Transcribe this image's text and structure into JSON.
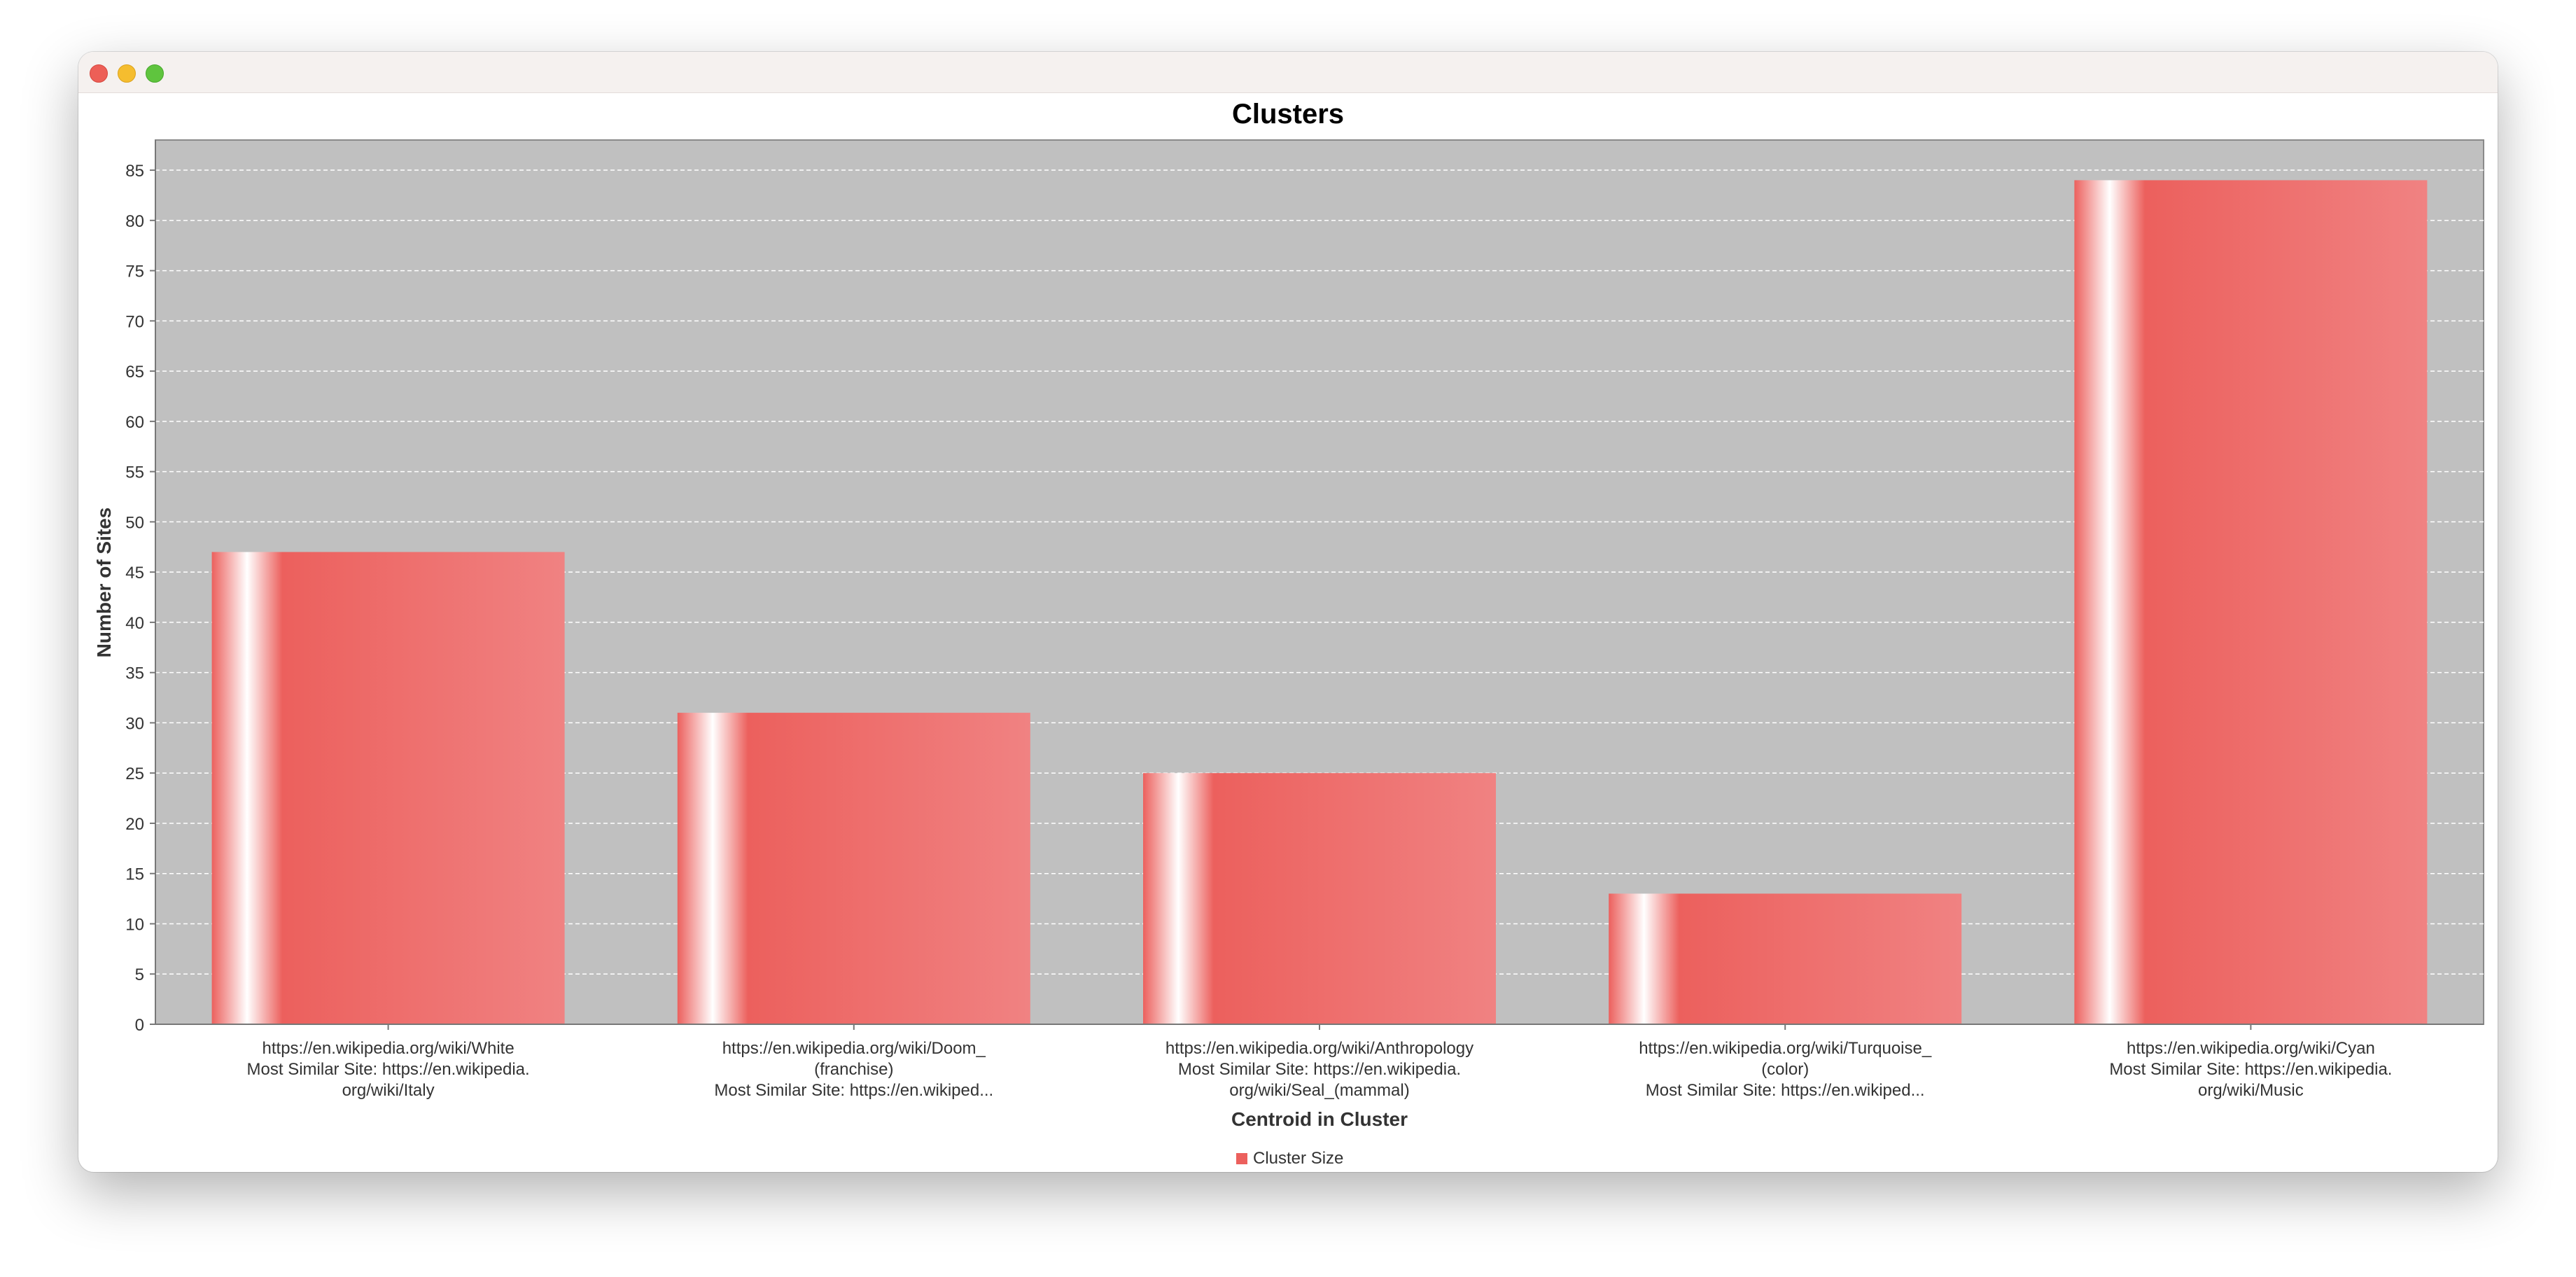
{
  "window": {
    "buttons": [
      "close",
      "minimize",
      "zoom"
    ]
  },
  "chart_data": {
    "type": "bar",
    "title": "Clusters",
    "xlabel": "Centroid in Cluster",
    "ylabel": "Number of Sites",
    "ylim": [
      0,
      88
    ],
    "yticks": [
      0,
      5,
      10,
      15,
      20,
      25,
      30,
      35,
      40,
      45,
      50,
      55,
      60,
      65,
      70,
      75,
      80,
      85
    ],
    "grid": true,
    "legend_position": "bottom-center",
    "colors": {
      "plot_background": "#c0c0c0",
      "bar": "#ec605d",
      "bar_highlight": "#ffffff",
      "bar_light": "#f08282"
    },
    "categories": [
      [
        "https://en.wikipedia.org/wiki/White",
        "Most Similar Site: https://en.wikipedia.",
        "org/wiki/Italy"
      ],
      [
        "https://en.wikipedia.org/wiki/Doom_",
        "(franchise)",
        "Most Similar Site: https://en.wikiped..."
      ],
      [
        "https://en.wikipedia.org/wiki/Anthropology",
        "Most Similar Site: https://en.wikipedia.",
        "org/wiki/Seal_(mammal)"
      ],
      [
        "https://en.wikipedia.org/wiki/Turquoise_",
        "(color)",
        "Most Similar Site: https://en.wikiped..."
      ],
      [
        "https://en.wikipedia.org/wiki/Cyan",
        "Most Similar Site: https://en.wikipedia.",
        "org/wiki/Music"
      ]
    ],
    "series": [
      {
        "name": "Cluster Size",
        "values": [
          47,
          31,
          25,
          13,
          84
        ]
      }
    ]
  }
}
